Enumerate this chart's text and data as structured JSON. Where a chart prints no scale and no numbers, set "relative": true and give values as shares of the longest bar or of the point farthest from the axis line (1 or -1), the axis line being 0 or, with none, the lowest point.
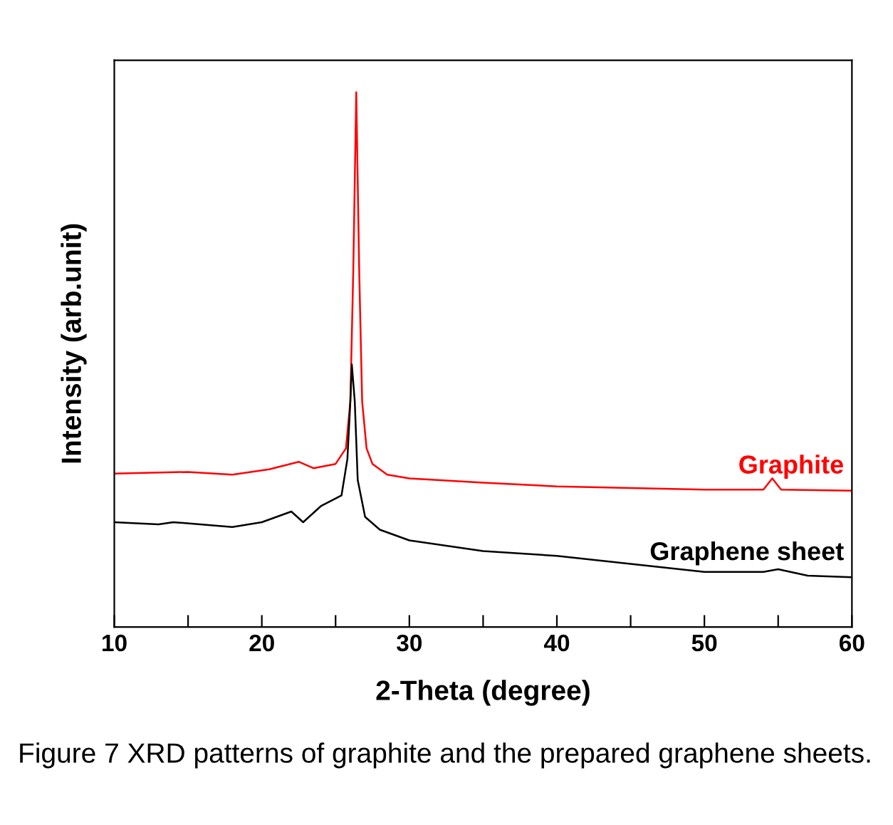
{
  "chart_data": {
    "type": "line",
    "relative": true,
    "xlabel": "2-Theta (degree)",
    "ylabel": "Intensity (arb.unit)",
    "xlim": [
      10,
      60
    ],
    "xticks": [
      10,
      {
        "value": 15,
        "label": null
      },
      20,
      {
        "value": 25,
        "label": null
      },
      30,
      {
        "value": 35,
        "label": null
      },
      40,
      {
        "value": 45,
        "label": null
      },
      50,
      {
        "value": 55,
        "label": null
      },
      60
    ],
    "tick_labels": "x",
    "grid": false,
    "legend": false,
    "marker": "none",
    "line_style": "solid",
    "annotations": [
      "Figure 7 XRD patterns of graphite and the prepared graphene sheets."
    ],
    "series": [
      {
        "name": "Graphite",
        "color": "#ff0000",
        "x": [
          10,
          15,
          18,
          20.5,
          22.5,
          23.5,
          25,
          25.7,
          26.0,
          26.2,
          26.4,
          26.6,
          26.8,
          27.1,
          27.5,
          28.5,
          30,
          35,
          40,
          45,
          50,
          54,
          54.6,
          55.2,
          60
        ],
        "values": [
          0.287,
          0.29,
          0.285,
          0.295,
          0.309,
          0.297,
          0.305,
          0.334,
          0.422,
          0.668,
          1.0,
          0.668,
          0.422,
          0.334,
          0.305,
          0.285,
          0.278,
          0.27,
          0.263,
          0.26,
          0.257,
          0.257,
          0.278,
          0.257,
          0.255
        ]
      },
      {
        "name": "Graphene sheet",
        "color": "#000000",
        "x": [
          10,
          13,
          14,
          18,
          20,
          22,
          22.8,
          24,
          25.4,
          25.8,
          26.0,
          26.1,
          26.3,
          26.5,
          27,
          28,
          30,
          35,
          40,
          45,
          50,
          54,
          55,
          57,
          60
        ],
        "values": [
          0.196,
          0.192,
          0.196,
          0.187,
          0.196,
          0.216,
          0.196,
          0.226,
          0.246,
          0.314,
          0.422,
          0.491,
          0.422,
          0.275,
          0.206,
          0.182,
          0.162,
          0.142,
          0.133,
          0.118,
          0.103,
          0.103,
          0.108,
          0.096,
          0.093
        ]
      }
    ]
  }
}
